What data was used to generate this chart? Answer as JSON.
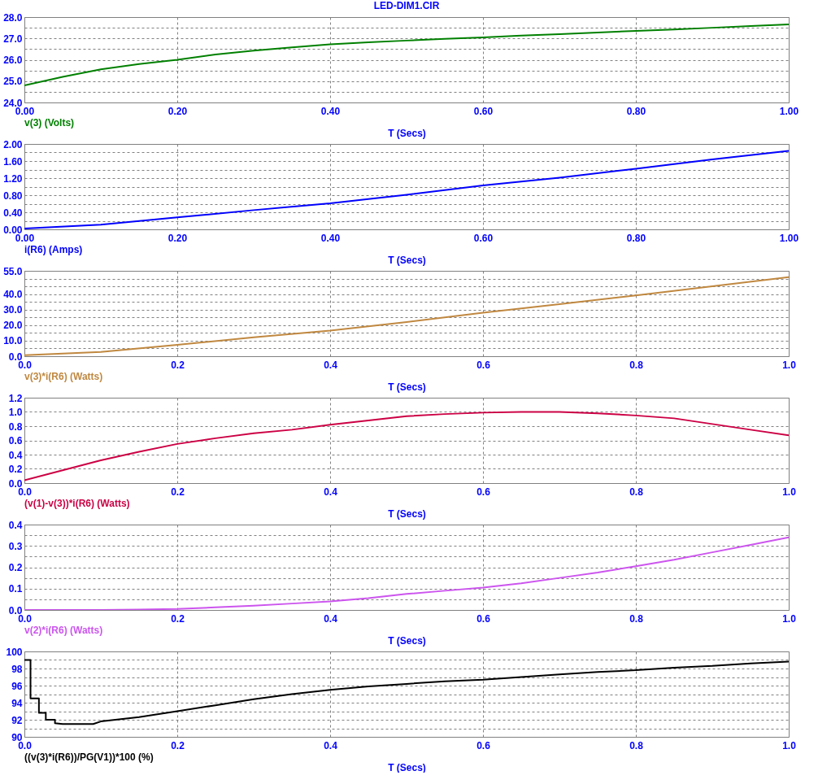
{
  "chart_data": [
    {
      "type": "line",
      "title": "LED-DIM1.CIR",
      "xlabel": "T (Secs)",
      "xlim": [
        0,
        1
      ],
      "ylim": [
        24,
        28
      ],
      "grid": true,
      "xticks": [
        {
          "value": 0,
          "label": "0.00"
        },
        {
          "value": 0.2,
          "label": "0.20"
        },
        {
          "value": 0.4,
          "label": "0.40"
        },
        {
          "value": 0.6,
          "label": "0.60"
        },
        {
          "value": 0.8,
          "label": "0.80"
        },
        {
          "value": 1,
          "label": "1.00"
        }
      ],
      "yticks": [
        {
          "value": 24,
          "label": "24.0"
        },
        {
          "value": 24.5,
          "label": null
        },
        {
          "value": 25,
          "label": "25.0"
        },
        {
          "value": 25.5,
          "label": null
        },
        {
          "value": 26,
          "label": "26.0"
        },
        {
          "value": 26.5,
          "label": null
        },
        {
          "value": 27,
          "label": "27.0"
        },
        {
          "value": 27.5,
          "label": null
        },
        {
          "value": 28,
          "label": "28.0"
        }
      ],
      "x": [
        0,
        0.05,
        0.1,
        0.15,
        0.2,
        0.25,
        0.3,
        0.35,
        0.4,
        0.45,
        0.5,
        0.55,
        0.6,
        0.65,
        0.7,
        0.75,
        0.8,
        0.85,
        0.9,
        0.95,
        1.0
      ],
      "series": [
        {
          "name": "v(3) (Volts)",
          "color": "#008000",
          "values": [
            24.8,
            25.2,
            25.55,
            25.8,
            26.0,
            26.25,
            26.43,
            26.58,
            26.72,
            26.82,
            26.9,
            26.98,
            27.05,
            27.13,
            27.2,
            27.28,
            27.35,
            27.42,
            27.5,
            27.58,
            27.66
          ]
        }
      ]
    },
    {
      "type": "line",
      "xlabel": "T (Secs)",
      "xlim": [
        0,
        1
      ],
      "ylim": [
        0,
        2
      ],
      "grid": true,
      "xticks": [
        {
          "value": 0,
          "label": "0.00"
        },
        {
          "value": 0.2,
          "label": "0.20"
        },
        {
          "value": 0.4,
          "label": "0.40"
        },
        {
          "value": 0.6,
          "label": "0.60"
        },
        {
          "value": 0.8,
          "label": "0.80"
        },
        {
          "value": 1,
          "label": "1.00"
        }
      ],
      "yticks": [
        {
          "value": 0,
          "label": "0.00"
        },
        {
          "value": 0.2,
          "label": null
        },
        {
          "value": 0.4,
          "label": "0.40"
        },
        {
          "value": 0.6,
          "label": null
        },
        {
          "value": 0.8,
          "label": "0.80"
        },
        {
          "value": 1.0,
          "label": null
        },
        {
          "value": 1.2,
          "label": "1.20"
        },
        {
          "value": 1.4,
          "label": null
        },
        {
          "value": 1.6,
          "label": "1.60"
        },
        {
          "value": 1.8,
          "label": null
        },
        {
          "value": 2.0,
          "label": "2.00"
        }
      ],
      "x": [
        0,
        0.1,
        0.2,
        0.3,
        0.4,
        0.5,
        0.6,
        0.7,
        0.8,
        0.9,
        1.0
      ],
      "series": [
        {
          "name": "i(R6) (Amps)",
          "color": "#0000ff",
          "values": [
            0.02,
            0.11,
            0.28,
            0.45,
            0.61,
            0.81,
            1.03,
            1.21,
            1.42,
            1.64,
            1.84
          ]
        }
      ]
    },
    {
      "type": "line",
      "xlabel": "T (Secs)",
      "xlim": [
        0,
        1
      ],
      "ylim": [
        0,
        55
      ],
      "grid": true,
      "xticks": [
        {
          "value": 0,
          "label": "0.0"
        },
        0.2,
        0.4,
        0.6,
        0.8,
        {
          "value": 1,
          "label": "1.0"
        }
      ],
      "yticks": [
        {
          "value": 0,
          "label": "0.0"
        },
        {
          "value": 5,
          "label": null
        },
        {
          "value": 10,
          "label": "10.0"
        },
        {
          "value": 15,
          "label": null
        },
        {
          "value": 20,
          "label": "20.0"
        },
        {
          "value": 25,
          "label": null
        },
        {
          "value": 30,
          "label": "30.0"
        },
        {
          "value": 35,
          "label": null
        },
        {
          "value": 40,
          "label": "40.0"
        },
        {
          "value": 45,
          "label": null
        },
        {
          "value": 50,
          "label": null
        },
        {
          "value": 55,
          "label": "55.0"
        }
      ],
      "x": [
        0,
        0.1,
        0.2,
        0.3,
        0.4,
        0.5,
        0.6,
        0.7,
        0.8,
        0.9,
        1.0
      ],
      "series": [
        {
          "name": "v(3)*i(R6) (Watts)",
          "color": "#c08840",
          "values": [
            0.7,
            2.7,
            7.3,
            12.2,
            16.5,
            22.0,
            28.0,
            33.5,
            39.2,
            45.0,
            51.0
          ]
        }
      ]
    },
    {
      "type": "line",
      "xlabel": "T (Secs)",
      "xlim": [
        0,
        1
      ],
      "ylim": [
        0,
        1.2
      ],
      "grid": true,
      "xticks": [
        {
          "value": 0,
          "label": "0.0"
        },
        0.2,
        0.4,
        0.6,
        0.8,
        {
          "value": 1,
          "label": "1.0"
        }
      ],
      "yticks": [
        {
          "value": 0,
          "label": "0.0"
        },
        0.2,
        0.4,
        0.6,
        0.8,
        {
          "value": 1,
          "label": "1.0"
        },
        1.2
      ],
      "x": [
        0,
        0.05,
        0.1,
        0.15,
        0.2,
        0.25,
        0.3,
        0.35,
        0.4,
        0.45,
        0.5,
        0.55,
        0.6,
        0.65,
        0.7,
        0.75,
        0.8,
        0.85,
        0.9,
        0.95,
        1.0
      ],
      "series": [
        {
          "name": "(v(1)-v(3))*i(R6) (Watts)",
          "color": "#cc0044",
          "values": [
            0.04,
            0.18,
            0.32,
            0.44,
            0.55,
            0.63,
            0.7,
            0.75,
            0.82,
            0.88,
            0.94,
            0.97,
            0.99,
            1.0,
            1.0,
            0.98,
            0.95,
            0.91,
            0.83,
            0.75,
            0.67
          ]
        }
      ]
    },
    {
      "type": "line",
      "xlabel": "T (Secs)",
      "xlim": [
        0,
        1
      ],
      "ylim": [
        0,
        0.4
      ],
      "grid": true,
      "xticks": [
        {
          "value": 0,
          "label": "0.0"
        },
        0.2,
        0.4,
        0.6,
        0.8,
        {
          "value": 1,
          "label": "1.0"
        }
      ],
      "yticks": [
        {
          "value": 0,
          "label": "0.0"
        },
        {
          "value": 0.05,
          "label": null
        },
        0.1,
        {
          "value": 0.15,
          "label": null
        },
        0.2,
        {
          "value": 0.25,
          "label": null
        },
        0.3,
        {
          "value": 0.35,
          "label": null
        },
        0.4
      ],
      "x": [
        0,
        0.05,
        0.1,
        0.15,
        0.2,
        0.25,
        0.3,
        0.35,
        0.4,
        0.45,
        0.5,
        0.55,
        0.6,
        0.65,
        0.7,
        0.75,
        0.8,
        0.85,
        0.9,
        0.95,
        1.0
      ],
      "series": [
        {
          "name": "v(2)*i(R6) (Watts)",
          "color": "#cc55ee",
          "values": [
            0,
            0,
            0,
            0.002,
            0.005,
            0.012,
            0.02,
            0.03,
            0.04,
            0.055,
            0.075,
            0.09,
            0.105,
            0.125,
            0.15,
            0.175,
            0.205,
            0.235,
            0.27,
            0.305,
            0.34
          ]
        }
      ]
    },
    {
      "type": "line",
      "xlabel": "T (Secs)",
      "xlim": [
        0,
        1
      ],
      "ylim": [
        90,
        100
      ],
      "grid": true,
      "xticks": [
        {
          "value": 0,
          "label": "0.0"
        },
        0.2,
        0.4,
        0.6,
        0.8,
        {
          "value": 1,
          "label": "1.0"
        }
      ],
      "yticks": [
        90,
        {
          "value": 91,
          "label": null
        },
        92,
        {
          "value": 93,
          "label": null
        },
        94,
        {
          "value": 95,
          "label": null
        },
        96,
        {
          "value": 97,
          "label": null
        },
        98,
        {
          "value": 99,
          "label": null
        },
        100
      ],
      "series": [
        {
          "name": "((v(3)*i(R6))/PG(V1))*100 (%)",
          "color": "#000000",
          "x": [
            0,
            0.008,
            0.008,
            0.019,
            0.019,
            0.028,
            0.028,
            0.04,
            0.04,
            0.05,
            0.09,
            0.1,
            0.15,
            0.2,
            0.25,
            0.3,
            0.35,
            0.4,
            0.45,
            0.5,
            0.55,
            0.6,
            0.65,
            0.7,
            0.75,
            0.8,
            0.85,
            0.9,
            0.95,
            1.0
          ],
          "values": [
            99,
            99,
            94.5,
            94.5,
            92.8,
            92.8,
            92.0,
            92.0,
            91.6,
            91.5,
            91.5,
            91.8,
            92.3,
            93.0,
            93.7,
            94.4,
            95.0,
            95.5,
            95.9,
            96.2,
            96.5,
            96.7,
            97.0,
            97.3,
            97.6,
            97.8,
            98.1,
            98.3,
            98.6,
            98.8
          ]
        }
      ]
    }
  ]
}
